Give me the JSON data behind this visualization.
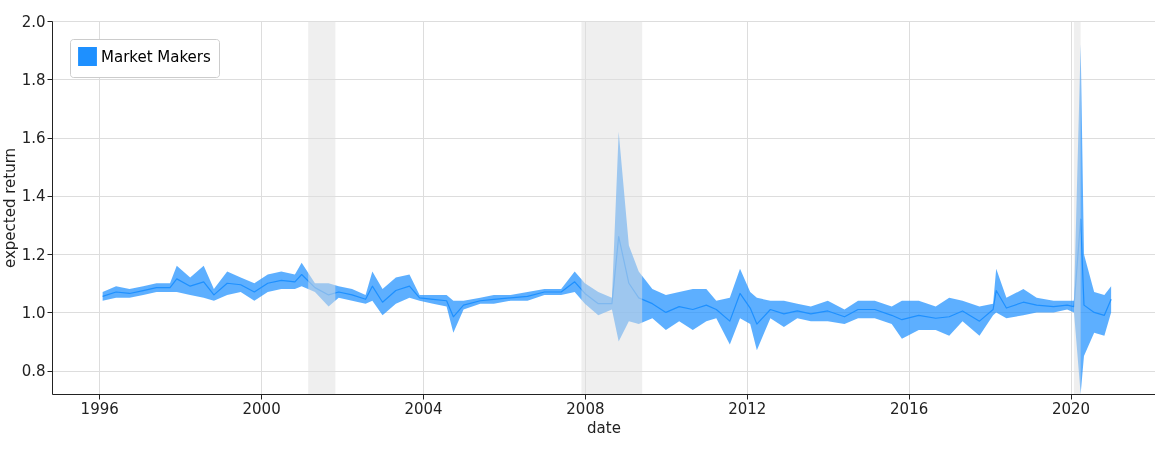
{
  "chart_data": {
    "type": "line",
    "xlabel": "date",
    "ylabel": "expected return",
    "x": [
      "1996-02",
      "1996-06",
      "1996-10",
      "1997-02",
      "1997-06",
      "1997-10",
      "1997-12",
      "1998-04",
      "1998-08",
      "1998-11",
      "1999-03",
      "1999-07",
      "1999-11",
      "2000-03",
      "2000-07",
      "2000-11",
      "2001-01",
      "2001-05",
      "2001-09",
      "2001-12",
      "2002-04",
      "2002-08",
      "2002-10",
      "2003-01",
      "2003-05",
      "2003-09",
      "2003-12",
      "2004-04",
      "2004-08",
      "2004-10",
      "2005-01",
      "2005-06",
      "2005-10",
      "2006-03",
      "2006-08",
      "2007-01",
      "2007-06",
      "2007-10",
      "2008-01",
      "2008-05",
      "2008-09",
      "2008-11",
      "2009-02",
      "2009-05",
      "2009-09",
      "2010-01",
      "2010-05",
      "2010-09",
      "2011-01",
      "2011-04",
      "2011-08",
      "2011-11",
      "2012-02",
      "2012-04",
      "2012-08",
      "2012-12",
      "2013-04",
      "2013-08",
      "2014-01",
      "2014-06",
      "2014-10",
      "2015-03",
      "2015-08",
      "2015-11",
      "2016-04",
      "2016-09",
      "2017-01",
      "2017-05",
      "2017-10",
      "2018-02",
      "2018-03",
      "2018-06",
      "2018-11",
      "2019-03",
      "2019-08",
      "2019-12",
      "2020-02",
      "2020-04",
      "2020-05",
      "2020-08",
      "2020-11",
      "2021-01"
    ],
    "series": [
      {
        "name": "Market Makers",
        "color": "#1e90ff",
        "values": [
          1.055,
          1.07,
          1.065,
          1.075,
          1.085,
          1.085,
          1.115,
          1.09,
          1.105,
          1.06,
          1.1,
          1.095,
          1.07,
          1.1,
          1.11,
          1.105,
          1.13,
          1.085,
          1.06,
          1.07,
          1.06,
          1.045,
          1.09,
          1.035,
          1.075,
          1.09,
          1.05,
          1.045,
          1.04,
          0.985,
          1.025,
          1.04,
          1.045,
          1.05,
          1.055,
          1.07,
          1.07,
          1.105,
          1.065,
          1.03,
          1.03,
          1.26,
          1.1,
          1.05,
          1.03,
          1.0,
          1.02,
          1.01,
          1.025,
          1.01,
          0.97,
          1.065,
          1.015,
          0.96,
          1.01,
          0.995,
          1.005,
          0.995,
          1.005,
          0.985,
          1.01,
          1.01,
          0.99,
          0.975,
          0.99,
          0.98,
          0.985,
          1.005,
          0.97,
          1.01,
          1.075,
          1.015,
          1.035,
          1.025,
          1.02,
          1.025,
          1.02,
          1.32,
          1.025,
          1.0,
          0.99,
          1.045
        ],
        "upper": [
          1.07,
          1.09,
          1.08,
          1.09,
          1.1,
          1.1,
          1.16,
          1.12,
          1.16,
          1.08,
          1.14,
          1.12,
          1.1,
          1.13,
          1.14,
          1.13,
          1.17,
          1.1,
          1.1,
          1.09,
          1.08,
          1.06,
          1.14,
          1.08,
          1.12,
          1.13,
          1.06,
          1.06,
          1.06,
          1.04,
          1.04,
          1.05,
          1.06,
          1.06,
          1.07,
          1.08,
          1.08,
          1.14,
          1.1,
          1.07,
          1.05,
          1.62,
          1.23,
          1.14,
          1.08,
          1.06,
          1.07,
          1.08,
          1.08,
          1.04,
          1.05,
          1.15,
          1.07,
          1.05,
          1.04,
          1.04,
          1.03,
          1.02,
          1.04,
          1.01,
          1.04,
          1.04,
          1.02,
          1.04,
          1.04,
          1.02,
          1.05,
          1.04,
          1.02,
          1.03,
          1.15,
          1.05,
          1.08,
          1.05,
          1.04,
          1.04,
          1.04,
          1.92,
          1.2,
          1.07,
          1.06,
          1.09
        ],
        "lower": [
          1.04,
          1.05,
          1.05,
          1.06,
          1.07,
          1.07,
          1.07,
          1.06,
          1.05,
          1.04,
          1.06,
          1.07,
          1.04,
          1.07,
          1.08,
          1.08,
          1.09,
          1.07,
          1.02,
          1.05,
          1.04,
          1.03,
          1.04,
          0.99,
          1.03,
          1.05,
          1.04,
          1.03,
          1.02,
          0.93,
          1.01,
          1.03,
          1.03,
          1.04,
          1.04,
          1.06,
          1.06,
          1.07,
          1.03,
          0.99,
          1.01,
          0.9,
          0.97,
          0.96,
          0.98,
          0.94,
          0.97,
          0.94,
          0.97,
          0.98,
          0.89,
          0.98,
          0.96,
          0.87,
          0.98,
          0.95,
          0.98,
          0.97,
          0.97,
          0.96,
          0.98,
          0.98,
          0.96,
          0.91,
          0.94,
          0.94,
          0.92,
          0.97,
          0.92,
          0.99,
          1.0,
          0.98,
          0.99,
          1.0,
          1.0,
          1.01,
          1.0,
          0.72,
          0.85,
          0.93,
          0.92,
          1.0
        ]
      }
    ],
    "bands": [
      {
        "axis": "x",
        "from": "2001-03",
        "to": "2001-11",
        "color": "#e0e0e0"
      },
      {
        "axis": "x",
        "from": "2007-12",
        "to": "2009-06",
        "color": "#e0e0e0"
      },
      {
        "axis": "x",
        "from": "2020-02",
        "to": "2020-04",
        "color": "#e0e0e0"
      }
    ],
    "xlim": [
      "1994-11",
      "2022-02"
    ],
    "xticks": [
      "1996",
      "2000",
      "2004",
      "2008",
      "2012",
      "2016",
      "2020"
    ],
    "ylim": [
      0.72,
      2.0
    ],
    "yticks": [
      0.8,
      {
        "value": 1,
        "label": "1.0"
      },
      1.2,
      1.4,
      1.6,
      1.8,
      {
        "value": 2,
        "label": "2.0"
      }
    ],
    "grid": true,
    "legend": "top left"
  }
}
